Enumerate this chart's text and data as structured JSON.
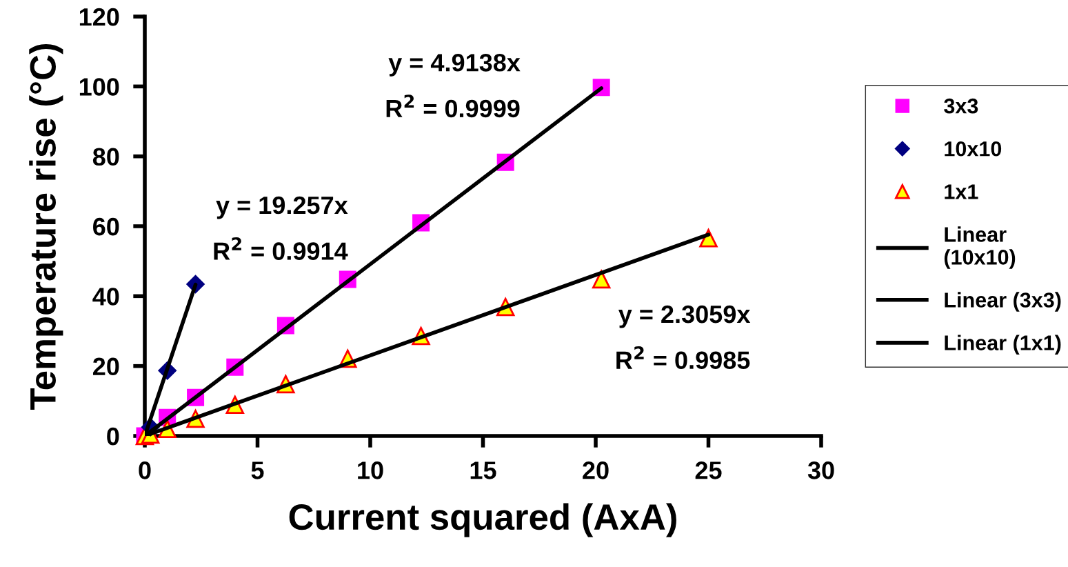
{
  "chart_data": {
    "type": "scatter",
    "xlabel": "Current squared (AxA)",
    "ylabel": "Temperature rise (°C)",
    "xlim": [
      0,
      30
    ],
    "xticks": [
      0,
      5,
      10,
      15,
      20,
      25,
      30
    ],
    "ylim": [
      0,
      120
    ],
    "yticks": [
      0,
      20,
      40,
      60,
      80,
      100,
      120
    ],
    "grid": false,
    "legend": "right",
    "series": [
      {
        "name": "3x3",
        "marker": "square",
        "color": "#ff00ff",
        "x": [
          0,
          1,
          2.25,
          4,
          6.25,
          9,
          12.25,
          16,
          20.25
        ],
        "values": [
          0,
          5.3,
          11,
          19.7,
          31.6,
          44.8,
          61,
          78.3,
          99.7
        ]
      },
      {
        "name": "10x10",
        "marker": "diamond",
        "color": "#000080",
        "x": [
          0.25,
          1,
          2.25
        ],
        "values": [
          2.5,
          18.7,
          43.4
        ]
      },
      {
        "name": "1x1",
        "marker": "triangle",
        "color": "#ffff00",
        "x": [
          0,
          0.25,
          1,
          2.25,
          4,
          6.25,
          9,
          12.25,
          16,
          20.25,
          25
        ],
        "values": [
          0,
          0.4,
          2,
          4.9,
          8.9,
          14.8,
          22.1,
          28.6,
          36.9,
          44.8,
          56.6
        ]
      },
      {
        "name": "Linear (10x10)",
        "type": "line",
        "marker": "none",
        "line_style": "solid",
        "color": "#000000",
        "x": [
          0,
          2.25
        ],
        "values": [
          0,
          43.3
        ]
      },
      {
        "name": "Linear (3x3)",
        "type": "line",
        "marker": "none",
        "line_style": "solid",
        "color": "#000000",
        "x": [
          0,
          20.25
        ],
        "values": [
          0,
          99.5
        ]
      },
      {
        "name": "Linear (1x1)",
        "type": "line",
        "marker": "none",
        "line_style": "solid",
        "color": "#000000",
        "x": [
          0,
          25
        ],
        "values": [
          0,
          57.6
        ]
      }
    ],
    "annotations": [
      "y = 4.9138x",
      "R$^{2}$ = 0.9999",
      "y = 19.257x",
      "R$^{2}$ = 0.9914",
      "y = 2.3059x",
      "R$^{2}$ = 0.9985"
    ]
  }
}
